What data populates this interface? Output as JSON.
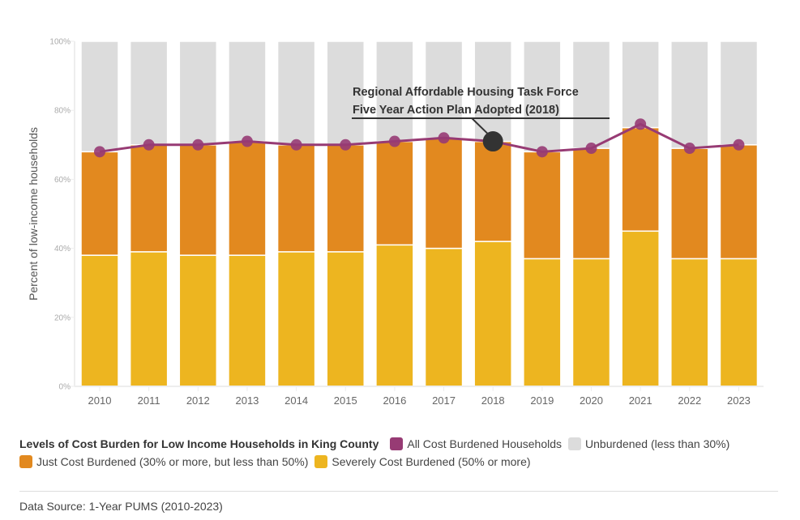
{
  "chart_data": {
    "type": "bar",
    "stacked": true,
    "title": "Levels of Cost Burden for Low Income Households in King County",
    "xlabel": "",
    "ylabel": "Percent of low-income households",
    "ylim": [
      0,
      100
    ],
    "yticks": [
      "0%",
      "20%",
      "40%",
      "60%",
      "80%",
      "100%"
    ],
    "ytick_values": [
      0,
      20,
      40,
      60,
      80,
      100
    ],
    "grid": false,
    "categories": [
      "2010",
      "2011",
      "2012",
      "2013",
      "2014",
      "2015",
      "2016",
      "2017",
      "2018",
      "2019",
      "2020",
      "2021",
      "2022",
      "2023"
    ],
    "series": [
      {
        "name": "Severely Cost Burdened (50% or more)",
        "type": "bar",
        "color": "#EDB520",
        "values": [
          38,
          39,
          38,
          38,
          39,
          39,
          41,
          40,
          42,
          37,
          37,
          45,
          37,
          37
        ]
      },
      {
        "name": "Just Cost Burdened (30% or more, but less than 50%)",
        "type": "bar",
        "color": "#E2891F",
        "values": [
          30,
          31,
          32,
          33,
          31,
          31,
          30,
          32,
          29,
          31,
          32,
          30,
          32,
          33
        ]
      },
      {
        "name": "Unburdened (less than 30%)",
        "type": "bar",
        "color": "#DCDCDC",
        "values": [
          32,
          30,
          30,
          29,
          30,
          30,
          29,
          28,
          29,
          32,
          31,
          25,
          31,
          30
        ]
      },
      {
        "name": "All Cost Burdened Households",
        "type": "line",
        "color": "#973B74",
        "values": [
          68,
          70,
          70,
          71,
          70,
          70,
          71,
          72,
          71,
          68,
          69,
          76,
          69,
          70
        ]
      }
    ],
    "annotation": {
      "lines": [
        "Regional Affordable Housing Task Force",
        "Five Year Action Plan Adopted (2018)"
      ],
      "category": "2018",
      "marker_color": "#333333"
    },
    "legend": {
      "placement": "bottom-left",
      "title": "Levels of Cost Burden for Low Income Households in King County",
      "items": [
        {
          "label": "All Cost Burdened Households",
          "color": "#973B74"
        },
        {
          "label": "Unburdened (less than 30%)",
          "color": "#DCDCDC"
        },
        {
          "label": "Just Cost Burdened (30% or more, but less than 50%)",
          "color": "#E2891F"
        },
        {
          "label": "Severely Cost Burdened (50% or more)",
          "color": "#EDB520"
        }
      ]
    }
  },
  "footer": {
    "source": "Data Source: 1-Year PUMS (2010-2023)"
  }
}
